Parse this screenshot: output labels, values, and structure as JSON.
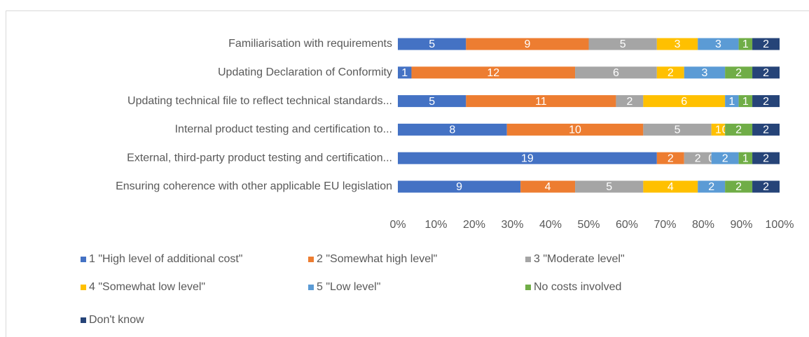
{
  "chart_data": {
    "type": "bar",
    "orientation": "horizontal",
    "stacked": "percent",
    "categories": [
      "Familiarisation with requirements",
      "Updating Declaration of Conformity",
      "Updating technical file to reflect technical standards...",
      "Internal product testing and certification to...",
      "External, third-party product testing and certification...",
      "Ensuring coherence with other applicable EU legislation"
    ],
    "series": [
      {
        "name": "1 \"High level of additional cost\"",
        "color": "#4472c4",
        "values": [
          5,
          1,
          5,
          8,
          19,
          9
        ]
      },
      {
        "name": "2 \"Somewhat high level\"",
        "color": "#ed7d31",
        "values": [
          9,
          12,
          11,
          10,
          2,
          4
        ]
      },
      {
        "name": "3 \"Moderate level\"",
        "color": "#a5a5a5",
        "values": [
          5,
          6,
          2,
          5,
          2,
          5
        ]
      },
      {
        "name": "4 \"Somewhat low level\"",
        "color": "#ffc000",
        "values": [
          3,
          2,
          6,
          1,
          0,
          4
        ]
      },
      {
        "name": "5 \"Low level\"",
        "color": "#5b9bd5",
        "values": [
          3,
          3,
          1,
          0,
          2,
          2
        ]
      },
      {
        "name": "No costs involved",
        "color": "#70ad47",
        "values": [
          1,
          2,
          1,
          2,
          1,
          2
        ]
      },
      {
        "name": "Don't know",
        "color": "#264478",
        "values": [
          2,
          2,
          2,
          2,
          2,
          2
        ]
      }
    ],
    "xlim": [
      0,
      100
    ],
    "xticks": [
      {
        "value": 0,
        "label": "0%"
      },
      {
        "value": 10,
        "label": "10%"
      },
      {
        "value": 20,
        "label": "20%"
      },
      {
        "value": 30,
        "label": "30%"
      },
      {
        "value": 40,
        "label": "40%"
      },
      {
        "value": 50,
        "label": "50%"
      },
      {
        "value": 60,
        "label": "60%"
      },
      {
        "value": 70,
        "label": "70%"
      },
      {
        "value": 80,
        "label": "80%"
      },
      {
        "value": 90,
        "label": "90%"
      },
      {
        "value": 100,
        "label": "100%"
      }
    ],
    "grid": false,
    "legend": "bottom"
  }
}
